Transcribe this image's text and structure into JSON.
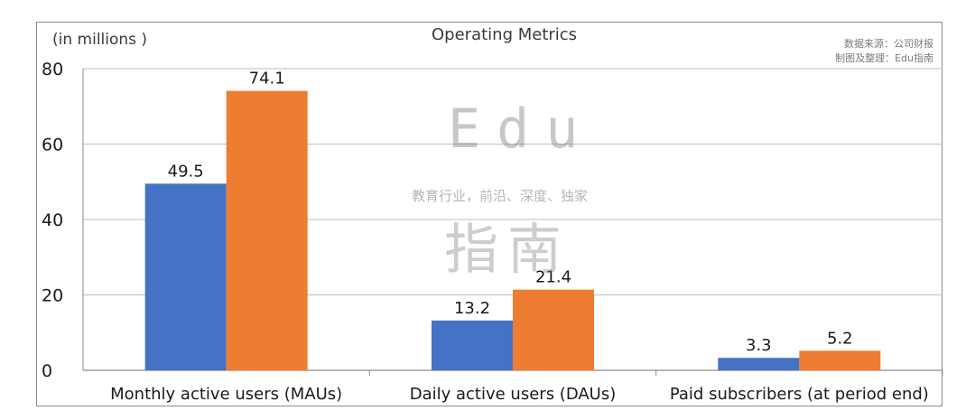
{
  "chart_data": {
    "type": "bar",
    "title": "Operating Metrics",
    "unit_label": "(in millions )",
    "categories": [
      "Monthly active users (MAUs)",
      "Daily active users (DAUs)",
      "Paid subscribers (at period end)"
    ],
    "series": [
      {
        "values": [
          49.5,
          13.2,
          3.3
        ],
        "color": "#4472c4"
      },
      {
        "values": [
          74.1,
          21.4,
          5.2
        ],
        "color": "#ed7d31"
      }
    ],
    "ylim": [
      0,
      80
    ],
    "yticks": [
      0,
      20,
      40,
      60,
      80
    ],
    "grid": true,
    "legend": "none"
  },
  "source": {
    "line1": "数据来源：公司财报",
    "line2": "制图及整理：Edu指南"
  },
  "watermark": {
    "latin": "Edu",
    "tagline": "教育行业，前沿、深度、独家",
    "chinese": "指南"
  }
}
